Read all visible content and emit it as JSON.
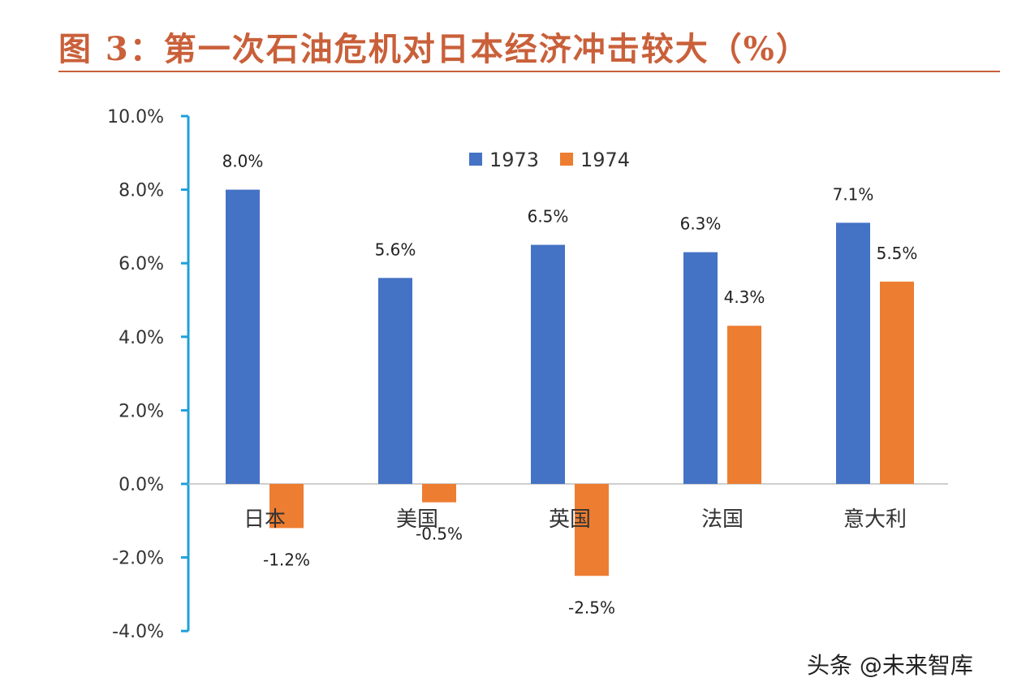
{
  "title": "图 3：第一次石油危机对日本经济冲击较大（%）",
  "watermark": "头条 @未来智库",
  "chart_data": {
    "type": "bar",
    "title": "图 3：第一次石油危机对日本经济冲击较大（%）",
    "categories": [
      "日本",
      "美国",
      "英国",
      "法国",
      "意大利"
    ],
    "series": [
      {
        "name": "1973",
        "values": [
          8.0,
          5.6,
          6.5,
          6.3,
          7.1
        ],
        "color": "#4472c4"
      },
      {
        "name": "1974",
        "values": [
          -1.2,
          -0.5,
          -2.5,
          4.3,
          5.5
        ],
        "color": "#ed7d31"
      }
    ],
    "ylim": [
      -4,
      10
    ],
    "yticks": [
      "10.0%",
      "8.0%",
      "6.0%",
      "4.0%",
      "2.0%",
      "0.0%",
      "-2.0%",
      "-4.0%"
    ],
    "ytick_values": [
      10,
      8,
      6,
      4,
      2,
      0,
      -2,
      -4
    ],
    "data_labels": [
      [
        "8.0%",
        "5.6%",
        "6.5%",
        "6.3%",
        "7.1%"
      ],
      [
        "-1.2%",
        "-0.5%",
        "-2.5%",
        "4.3%",
        "5.5%"
      ]
    ],
    "legend_placement": "top-center",
    "grid": false,
    "axis_color": "#1ea0dc"
  }
}
